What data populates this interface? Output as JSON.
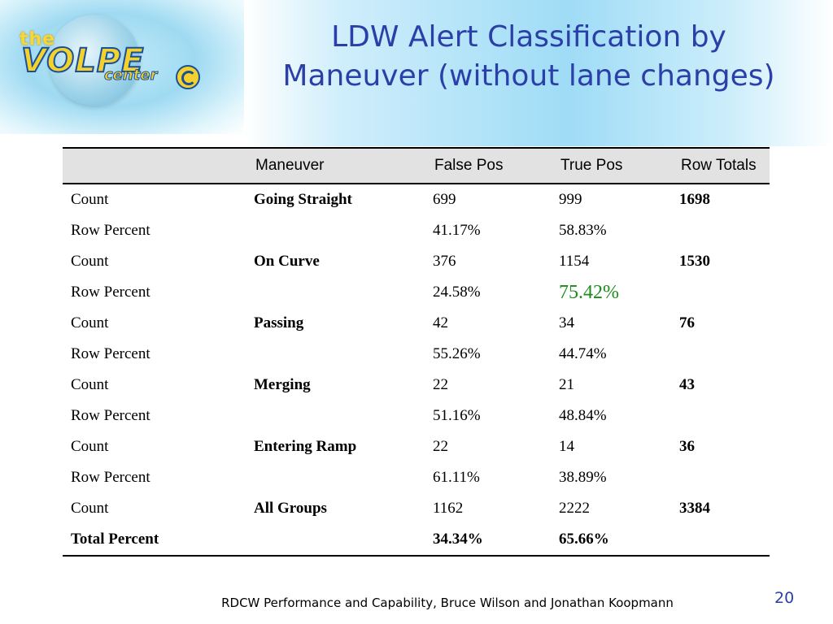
{
  "logo": {
    "the": "the",
    "volpe": "VOLPE",
    "center": "center"
  },
  "title": {
    "line1": "LDW Alert Classification by",
    "line2": "Maneuver (without lane changes)"
  },
  "table": {
    "headers": [
      "",
      "Maneuver",
      "False Pos",
      "True Pos",
      "Row Totals"
    ],
    "rows": [
      [
        "Count",
        "Going Straight",
        "699",
        "999",
        "1698"
      ],
      [
        "Row Percent",
        "",
        "41.17%",
        "58.83%",
        ""
      ],
      [
        "Count",
        "On Curve",
        "376",
        "1154",
        "1530"
      ],
      [
        "Row Percent",
        "",
        "24.58%",
        "75.42%",
        ""
      ],
      [
        "Count",
        "Passing",
        "42",
        "34",
        "76"
      ],
      [
        "Row Percent",
        "",
        "55.26%",
        "44.74%",
        ""
      ],
      [
        "Count",
        "Merging",
        "22",
        "21",
        "43"
      ],
      [
        "Row Percent",
        "",
        "51.16%",
        "48.84%",
        ""
      ],
      [
        "Count",
        "Entering Ramp",
        "22",
        "14",
        "36"
      ],
      [
        "Row Percent",
        "",
        "61.11%",
        "38.89%",
        ""
      ],
      [
        "Count",
        "All Groups",
        "1162",
        "2222",
        "3384"
      ],
      [
        "Total Percent",
        "",
        "34.34%",
        "65.66%",
        ""
      ]
    ],
    "highlight_color": "#1a8c1a"
  },
  "footer": {
    "text": "RDCW Performance and Capability, Bruce Wilson and Jonathan Koopmann",
    "page": "20"
  },
  "colors": {
    "title": "#2b3fa8",
    "header_bg": "#e2e2e2"
  }
}
